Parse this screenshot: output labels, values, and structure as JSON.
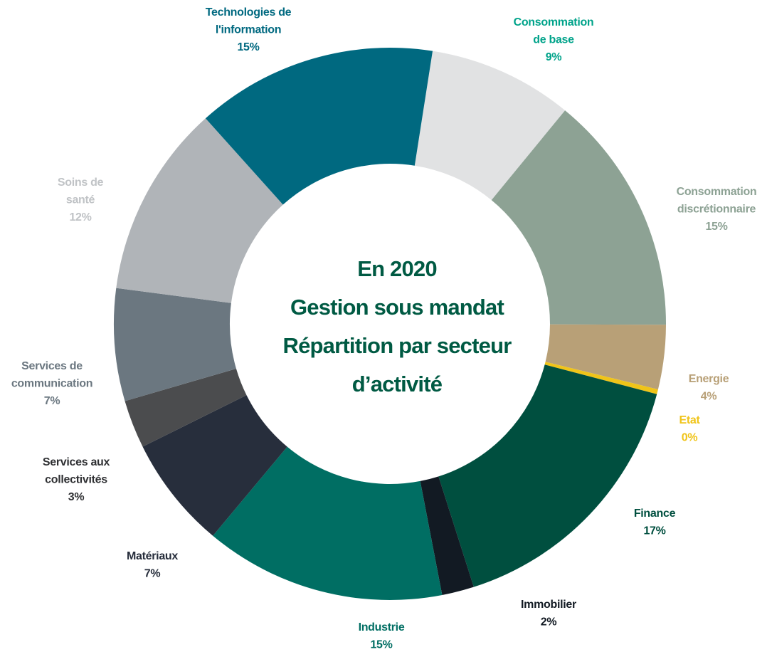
{
  "chart_data": {
    "type": "donut",
    "title": [
      "En 2020",
      "Gestion sous mandat",
      "Répartition par secteur",
      "d’activité"
    ],
    "categories": [
      [
        "Consommation",
        "de base"
      ],
      [
        "Consommation",
        "discrétionnaire"
      ],
      [
        "Energie"
      ],
      [
        "Etat"
      ],
      [
        "Finance"
      ],
      [
        "Immobilier"
      ],
      [
        "Industrie"
      ],
      [
        "Matériaux"
      ],
      [
        "Services aux",
        "collectivités"
      ],
      [
        "Services de",
        "communication"
      ],
      [
        "Soins de",
        "santé"
      ],
      [
        "Technologies de",
        "l'information"
      ]
    ],
    "values": [
      9,
      15,
      4,
      0.3,
      17,
      2,
      15,
      7,
      3,
      7,
      12,
      15
    ],
    "value_labels": [
      "9%",
      "15%",
      "4%",
      "0%",
      "17%",
      "2%",
      "15%",
      "7%",
      "3%",
      "7%",
      "12%",
      "15%"
    ],
    "colors": [
      "#e1e2e3",
      "#8da294",
      "#b8a077",
      "#f0c419",
      "#004f3f",
      "#121a23",
      "#006e63",
      "#272e3c",
      "#4b4c4e",
      "#6b7780",
      "#b0b4b8",
      "#006980"
    ],
    "label_colors": [
      "#00a38a",
      "#8da294",
      "#b8a077",
      "#f0c419",
      "#004f3f",
      "#121a23",
      "#006e63",
      "#272e3c",
      "#2f3033",
      "#6b7780",
      "#c0c3c6",
      "#006980"
    ]
  }
}
